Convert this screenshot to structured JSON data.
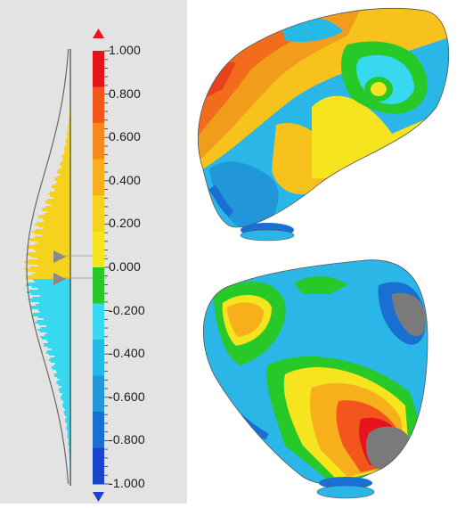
{
  "scale": {
    "max_label": "1.000",
    "min_label": "-1.000",
    "tick_labels": [
      "1.000",
      "0.800",
      "0.600",
      "0.400",
      "0.200",
      "0.000",
      "-0.200",
      "-0.400",
      "-0.600",
      "-0.800",
      "-1.000"
    ],
    "bands": [
      {
        "color": "#e8141d"
      },
      {
        "color": "#f2561c"
      },
      {
        "color": "#f58a1a"
      },
      {
        "color": "#f7af1b"
      },
      {
        "color": "#f8d11e"
      },
      {
        "color": "#f5e41e"
      },
      {
        "color": "#27c928"
      },
      {
        "color": "#38d8f0"
      },
      {
        "color": "#25b9e6"
      },
      {
        "color": "#2196d9"
      },
      {
        "color": "#1a6fd3"
      },
      {
        "color": "#1b44cc"
      }
    ],
    "up_arrow_color": "#e8141d",
    "down_arrow_color": "#1b44cc"
  },
  "histogram": {
    "positive_color": "#f5d21c",
    "negative_color": "#38d8f0",
    "curve_color": "#666666"
  },
  "views": [
    {
      "name": "top-view"
    },
    {
      "name": "bottom-view"
    }
  ]
}
